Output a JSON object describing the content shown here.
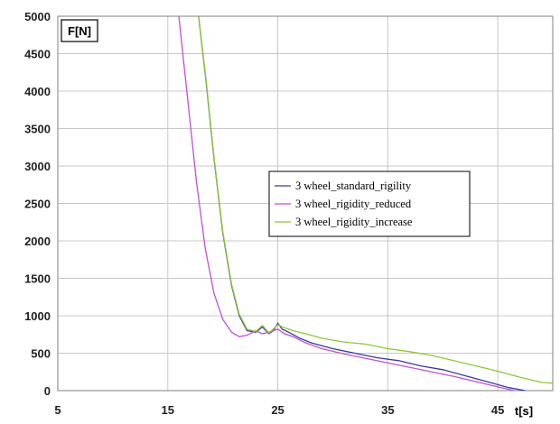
{
  "chart_data": {
    "type": "line",
    "xlabel": "t[s]",
    "ylabel": "F[N]",
    "xlim": [
      5,
      50
    ],
    "ylim": [
      0,
      5000
    ],
    "xticks": [
      5,
      15,
      25,
      35,
      45
    ],
    "yticks": [
      0,
      500,
      1000,
      1500,
      2000,
      2500,
      3000,
      3500,
      4000,
      4500,
      5000
    ],
    "grid": true,
    "legend_position": "center-right",
    "series": [
      {
        "name": "3 wheel_standard_rigility",
        "color": "#3a3aa0",
        "x": [
          17.8,
          18.5,
          19.2,
          20.0,
          20.8,
          21.5,
          22.2,
          23.0,
          23.6,
          24.2,
          24.6,
          25.0,
          25.4,
          26.0,
          27.0,
          28.0,
          30.0,
          32.0,
          34.0,
          36.0,
          38.0,
          40.0,
          42.0,
          44.0,
          46.0,
          47.5
        ],
        "y": [
          5000,
          4100,
          3100,
          2100,
          1400,
          1000,
          800,
          780,
          850,
          760,
          800,
          900,
          820,
          780,
          700,
          640,
          560,
          500,
          440,
          400,
          330,
          280,
          200,
          120,
          40,
          0
        ]
      },
      {
        "name": "3 wheel_rigidity_reduced",
        "color": "#c050d8",
        "x": [
          16.0,
          16.8,
          17.6,
          18.4,
          19.2,
          20.0,
          20.8,
          21.5,
          22.2,
          23.0,
          23.6,
          24.2,
          25.0,
          25.6,
          26.4,
          27.5,
          29.0,
          31.0,
          33.0,
          35.0,
          37.0,
          39.0,
          41.0,
          43.0,
          45.0,
          46.5
        ],
        "y": [
          5000,
          3900,
          2800,
          1900,
          1300,
          950,
          780,
          720,
          740,
          800,
          760,
          780,
          820,
          760,
          720,
          640,
          560,
          490,
          430,
          370,
          310,
          250,
          190,
          120,
          50,
          0
        ]
      },
      {
        "name": "3 wheel_rigidity_increase",
        "color": "#8ec835",
        "x": [
          17.8,
          18.5,
          19.2,
          20.0,
          20.8,
          21.5,
          22.2,
          23.0,
          23.6,
          24.2,
          25.0,
          25.6,
          26.4,
          27.5,
          29.0,
          31.0,
          33.0,
          35.0,
          37.0,
          39.0,
          41.0,
          43.0,
          45.0,
          47.0,
          49.0,
          50.0
        ],
        "y": [
          5000,
          4120,
          3120,
          2120,
          1420,
          1020,
          820,
          790,
          870,
          770,
          880,
          840,
          800,
          760,
          700,
          650,
          620,
          560,
          520,
          470,
          400,
          330,
          260,
          180,
          110,
          100
        ]
      }
    ]
  }
}
